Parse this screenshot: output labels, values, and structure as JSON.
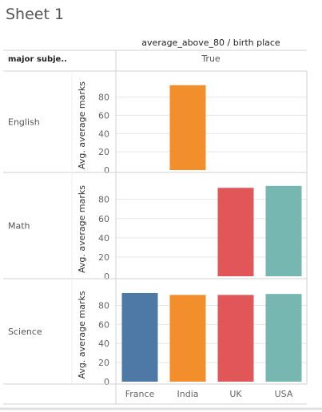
{
  "sheet": {
    "title": "Sheet 1"
  },
  "header": {
    "column_title": "average_above_80 / birth place",
    "column_value": "True",
    "row_header": "major subje.."
  },
  "colors": {
    "France": "#4e79a7",
    "India": "#f28e2b",
    "UK": "#e15759",
    "USA": "#76b7b2",
    "gridline": "#e6e6e6",
    "border": "#d0d0d0"
  },
  "chart_data": {
    "type": "bar",
    "categories": [
      "France",
      "India",
      "UK",
      "USA"
    ],
    "ylabel": "Avg. average marks",
    "ylim": [
      0,
      98
    ],
    "yticks": [
      0,
      20,
      40,
      60,
      80
    ],
    "panels": [
      {
        "name": "English",
        "values": [
          null,
          93,
          null,
          null
        ]
      },
      {
        "name": "Math",
        "values": [
          null,
          null,
          92,
          94
        ]
      },
      {
        "name": "Science",
        "values": [
          93,
          91,
          91,
          92
        ]
      }
    ]
  }
}
